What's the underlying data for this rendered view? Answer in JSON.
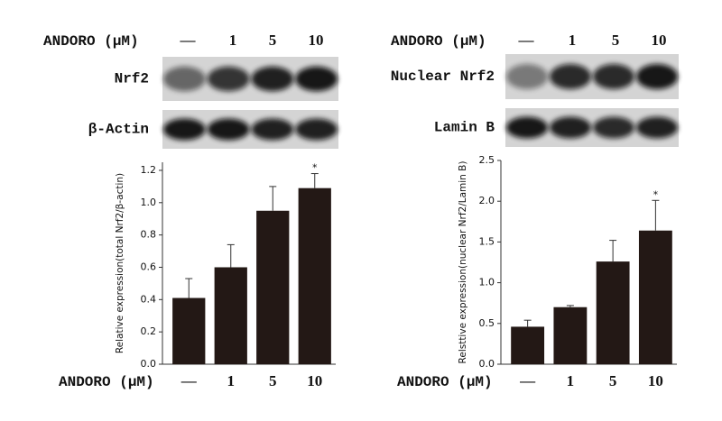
{
  "chart_data": [
    {
      "type": "bar",
      "x_label": "ANDORO (μM)",
      "blots": [
        "Nrf2",
        "β-Actin"
      ],
      "y_label": "Relative expression(total Nrf2/β-actin)",
      "categories": [
        "—",
        "1",
        "5",
        "10"
      ],
      "values": [
        0.41,
        0.6,
        0.95,
        1.09
      ],
      "errors": [
        0.12,
        0.14,
        0.15,
        0.09
      ],
      "significance": [
        null,
        null,
        null,
        "*"
      ],
      "color": "#231815",
      "ylim": [
        0,
        1.25
      ],
      "yticks": [
        {
          "value": 0,
          "label": "0.0"
        },
        {
          "value": 0.2,
          "label": "0.2"
        },
        {
          "value": 0.4,
          "label": "0.4"
        },
        {
          "value": 0.6,
          "label": "0.6"
        },
        {
          "value": 0.8,
          "label": "0.8"
        },
        {
          "value": 1,
          "label": "1.0"
        },
        {
          "value": 1.2,
          "label": "1.2"
        }
      ]
    },
    {
      "type": "bar",
      "x_label": "ANDORO (μM)",
      "blots": [
        "Nuclear Nrf2",
        "Lamin B"
      ],
      "y_label": "Relsttive expression(nuclear Nrf2/Lamin B)",
      "categories": [
        "—",
        "1",
        "5",
        "10"
      ],
      "values": [
        0.46,
        0.7,
        1.26,
        1.64
      ],
      "errors": [
        0.08,
        0.02,
        0.26,
        0.37
      ],
      "significance": [
        null,
        null,
        null,
        "*"
      ],
      "color": "#231815",
      "ylim": [
        0,
        2.5
      ],
      "yticks": [
        {
          "value": 0,
          "label": "0.0"
        },
        {
          "value": 0.5,
          "label": "0.5"
        },
        {
          "value": 1,
          "label": "1.0"
        },
        {
          "value": 1.5,
          "label": "1.5"
        },
        {
          "value": 2,
          "label": "2.0"
        },
        {
          "value": 2.5,
          "label": "2.5"
        }
      ]
    }
  ]
}
